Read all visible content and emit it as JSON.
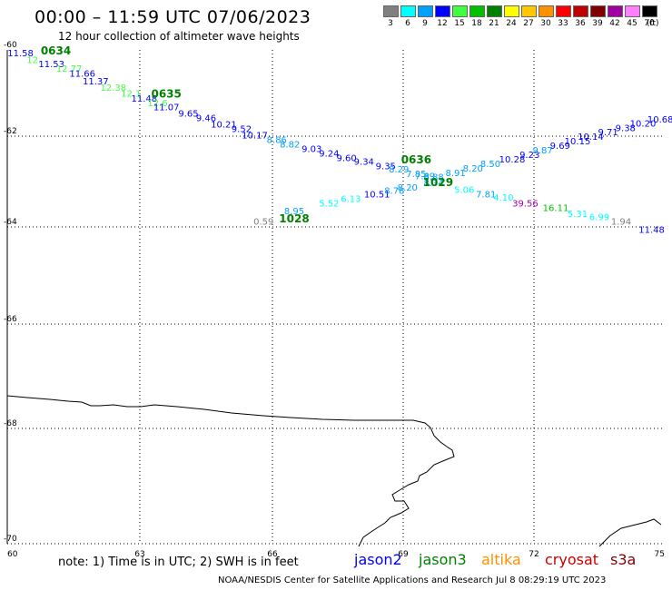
{
  "title": "00:00 – 11:59 UTC 07/06/2023",
  "subtitle": "12 hour collection of altimeter wave heights",
  "legend": {
    "unit": "(ft)",
    "items": [
      {
        "label": "3",
        "color": "#808080"
      },
      {
        "label": "6",
        "color": "#00ffff"
      },
      {
        "label": "9",
        "color": "#00a0ff"
      },
      {
        "label": "12",
        "color": "#0000ff"
      },
      {
        "label": "15",
        "color": "#40ff40"
      },
      {
        "label": "18",
        "color": "#00c000"
      },
      {
        "label": "21",
        "color": "#008000"
      },
      {
        "label": "24",
        "color": "#ffff00"
      },
      {
        "label": "27",
        "color": "#ffc800"
      },
      {
        "label": "30",
        "color": "#ff9000"
      },
      {
        "label": "33",
        "color": "#ff0000"
      },
      {
        "label": "36",
        "color": "#c00000"
      },
      {
        "label": "39",
        "color": "#800000"
      },
      {
        "label": "42",
        "color": "#a000a0"
      },
      {
        "label": "45",
        "color": "#ff80ff"
      },
      {
        "label": "70",
        "color": "#000000"
      }
    ]
  },
  "axes": {
    "lon_labels": [
      "60",
      "63",
      "66",
      "69",
      "72",
      "75"
    ],
    "lat_labels": [
      "-60",
      "-62",
      "-64",
      "-66",
      "-68",
      "-70"
    ]
  },
  "passes": [
    {
      "label": "0634",
      "lat": -60.1,
      "lon": 61.1
    },
    {
      "label": "0635",
      "lat": -61.1,
      "lon": 63.6
    },
    {
      "label": "0636",
      "lat": -62.6,
      "lon": 69.3
    },
    {
      "label": "1029",
      "lat": -63.1,
      "lon": 69.8
    },
    {
      "label": "1028",
      "lat": -63.9,
      "lon": 66.5
    }
  ],
  "observations": [
    {
      "v": "11.58",
      "lat": -60.15,
      "lon": 60.3,
      "c": "#0000ff"
    },
    {
      "v": "12.",
      "lat": -60.3,
      "lon": 60.6,
      "c": "#40ff40"
    },
    {
      "v": "11.53",
      "lat": -60.4,
      "lon": 61.0,
      "c": "#0000ff"
    },
    {
      "v": "12.77",
      "lat": -60.5,
      "lon": 61.4,
      "c": "#40ff40"
    },
    {
      "v": "11.66",
      "lat": -60.62,
      "lon": 61.7,
      "c": "#0000ff"
    },
    {
      "v": "11.37",
      "lat": -60.8,
      "lon": 62.0,
      "c": "#0000ff"
    },
    {
      "v": "12.38",
      "lat": -60.95,
      "lon": 62.4,
      "c": "#40ff40"
    },
    {
      "v": "12.1",
      "lat": -61.08,
      "lon": 62.8,
      "c": "#40ff40"
    },
    {
      "v": "11.48",
      "lat": -61.2,
      "lon": 63.1,
      "c": "#0000ff"
    },
    {
      "v": "12.6",
      "lat": -61.3,
      "lon": 63.4,
      "c": "#40ff40"
    },
    {
      "v": "11.07",
      "lat": -61.4,
      "lon": 63.6,
      "c": "#0000ff"
    },
    {
      "v": "9.65",
      "lat": -61.55,
      "lon": 64.1,
      "c": "#0000ff"
    },
    {
      "v": "9.46",
      "lat": -61.65,
      "lon": 64.5,
      "c": "#0000ff"
    },
    {
      "v": "10.21",
      "lat": -61.8,
      "lon": 64.9,
      "c": "#0000ff"
    },
    {
      "v": "9.52",
      "lat": -61.9,
      "lon": 65.3,
      "c": "#0000ff"
    },
    {
      "v": "10.17",
      "lat": -62.05,
      "lon": 65.6,
      "c": "#0000ff"
    },
    {
      "v": "8.86",
      "lat": -62.15,
      "lon": 66.1,
      "c": "#00a0ff"
    },
    {
      "v": "8.82",
      "lat": -62.25,
      "lon": 66.4,
      "c": "#00a0ff"
    },
    {
      "v": "9.03",
      "lat": -62.35,
      "lon": 66.9,
      "c": "#0000ff"
    },
    {
      "v": "9.24",
      "lat": -62.45,
      "lon": 67.3,
      "c": "#0000ff"
    },
    {
      "v": "9.60",
      "lat": -62.55,
      "lon": 67.7,
      "c": "#0000ff"
    },
    {
      "v": "9.34",
      "lat": -62.63,
      "lon": 68.1,
      "c": "#0000ff"
    },
    {
      "v": "9.35",
      "lat": -62.73,
      "lon": 68.6,
      "c": "#0000ff"
    },
    {
      "v": "8.29",
      "lat": -62.8,
      "lon": 68.9,
      "c": "#00a0ff"
    },
    {
      "v": "7.85",
      "lat": -62.9,
      "lon": 69.3,
      "c": "#00a0ff"
    },
    {
      "v": "7.89",
      "lat": -62.95,
      "lon": 69.5,
      "c": "#00a0ff"
    },
    {
      "v": "8.88",
      "lat": -62.97,
      "lon": 69.7,
      "c": "#00a0ff"
    },
    {
      "v": "8.91",
      "lat": -62.88,
      "lon": 70.2,
      "c": "#00a0ff"
    },
    {
      "v": "8.20",
      "lat": -62.78,
      "lon": 70.6,
      "c": "#00a0ff"
    },
    {
      "v": "8.50",
      "lat": -62.68,
      "lon": 71.0,
      "c": "#00a0ff"
    },
    {
      "v": "10.28",
      "lat": -62.58,
      "lon": 71.5,
      "c": "#0000ff"
    },
    {
      "v": "9.23",
      "lat": -62.48,
      "lon": 71.9,
      "c": "#0000ff"
    },
    {
      "v": "9.87",
      "lat": -62.38,
      "lon": 72.2,
      "c": "#00a0ff"
    },
    {
      "v": "9.69",
      "lat": -62.28,
      "lon": 72.6,
      "c": "#0000ff"
    },
    {
      "v": "10.15",
      "lat": -62.18,
      "lon": 73.0,
      "c": "#0000ff"
    },
    {
      "v": "10.14",
      "lat": -62.08,
      "lon": 73.3,
      "c": "#0000ff"
    },
    {
      "v": "9.71",
      "lat": -61.98,
      "lon": 73.7,
      "c": "#0000ff"
    },
    {
      "v": "9.38",
      "lat": -61.88,
      "lon": 74.1,
      "c": "#0000ff"
    },
    {
      "v": "10.20",
      "lat": -61.78,
      "lon": 74.5,
      "c": "#0000ff"
    },
    {
      "v": "10.68",
      "lat": -61.68,
      "lon": 74.9,
      "c": "#0000ff"
    },
    {
      "v": "0.59",
      "lat": -63.95,
      "lon": 65.8,
      "c": "#808080"
    },
    {
      "v": "8.95",
      "lat": -63.72,
      "lon": 66.5,
      "c": "#00a0ff"
    },
    {
      "v": "5.52",
      "lat": -63.55,
      "lon": 67.3,
      "c": "#00ffff"
    },
    {
      "v": "6.13",
      "lat": -63.45,
      "lon": 67.8,
      "c": "#00ffff"
    },
    {
      "v": "10.51",
      "lat": -63.35,
      "lon": 68.4,
      "c": "#0000ff"
    },
    {
      "v": "8.78",
      "lat": -63.27,
      "lon": 68.8,
      "c": "#00a0ff"
    },
    {
      "v": "8.20",
      "lat": -63.2,
      "lon": 69.1,
      "c": "#00a0ff"
    },
    {
      "v": "8.34",
      "lat": -63.1,
      "lon": 69.7,
      "c": "#00a0ff"
    },
    {
      "v": "5.06",
      "lat": -63.25,
      "lon": 70.4,
      "c": "#00ffff"
    },
    {
      "v": "7.81",
      "lat": -63.35,
      "lon": 70.9,
      "c": "#00a0ff"
    },
    {
      "v": "4.10",
      "lat": -63.42,
      "lon": 71.3,
      "c": "#00ffff"
    },
    {
      "v": "39.56",
      "lat": -63.55,
      "lon": 71.8,
      "c": "#a000a0"
    },
    {
      "v": "16.11",
      "lat": -63.65,
      "lon": 72.5,
      "c": "#00c000"
    },
    {
      "v": "5.31",
      "lat": -63.78,
      "lon": 73.0,
      "c": "#00ffff"
    },
    {
      "v": "6.99",
      "lat": -63.85,
      "lon": 73.5,
      "c": "#00ffff"
    },
    {
      "v": "1.94",
      "lat": -63.95,
      "lon": 74.0,
      "c": "#808080"
    },
    {
      "v": "11.48",
      "lat": -64.12,
      "lon": 74.7,
      "c": "#0000ff"
    }
  ],
  "note": "note:  1) Time is in UTC;  2) SWH is in feet",
  "satellites": [
    {
      "name": "jason2",
      "color": "#0000ff"
    },
    {
      "name": "jason3",
      "color": "#008000"
    },
    {
      "name": "altika",
      "color": "#ff9000"
    },
    {
      "name": "cryosat",
      "color": "#cc0000"
    },
    {
      "name": "s3a",
      "color": "#800000"
    }
  ],
  "credit": "NOAA/NESDIS Center for Satellite Applications and Research    Jul  8 08:29:19 UTC 2023"
}
